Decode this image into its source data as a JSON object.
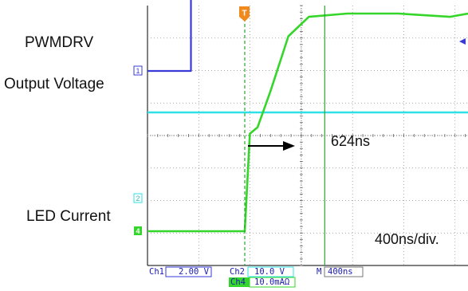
{
  "labels": {
    "pwmdrv": "PWMDRV",
    "output_voltage": "Output Voltage",
    "led_current": "LED Current",
    "delay": "624ns",
    "timebase": "400ns/div."
  },
  "markers": {
    "ch1": "1",
    "ch2": "2",
    "ch4": "4",
    "trigger": "T"
  },
  "status_bar": {
    "ch1_name": "Ch1",
    "ch1_scale": "2.00 V",
    "ch2_name": "Ch2",
    "ch2_scale": "10.0 V",
    "ch4_name": "Ch4",
    "ch4_scale": "10.0mAΩ",
    "m_label": "M",
    "m_scale": "400ns"
  },
  "colors": {
    "ch1": "#3a3ad8",
    "ch2": "#2fe0e6",
    "ch4": "#34d62a",
    "cursor": "#2aa52a",
    "trigger": "#f08a1e",
    "grid": "#8a8a8a",
    "status": "#1b1bb0"
  },
  "chart_data": {
    "type": "line",
    "x_unit": "ns",
    "time_per_division_ns": 400,
    "delay_ns": 624,
    "series": [
      {
        "channel": "Ch1",
        "volts_per_div": 2.0,
        "x": [
          -1300,
          -420,
          -420,
          -400,
          2060
        ],
        "y": [
          0,
          0,
          9.2,
          8.8,
          8.8
        ]
      },
      {
        "channel": "Ch2",
        "volts_per_div": 10.0,
        "x": [
          -1300,
          2060
        ],
        "y": [
          -4.9,
          -4.9
        ]
      },
      {
        "channel": "Ch4",
        "scale_per_div": "10.0mAΩ",
        "x": [
          -1300,
          0,
          40,
          100,
          200,
          340,
          500,
          800,
          1200,
          1600,
          2060
        ],
        "y": [
          0,
          0,
          30,
          32,
          43,
          60,
          66,
          67,
          67,
          66,
          67
        ]
      }
    ]
  }
}
